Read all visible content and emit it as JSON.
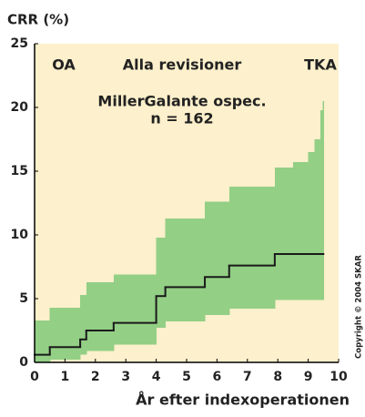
{
  "chart_data": {
    "type": "step",
    "title": "CRR (%)",
    "x_label": "År efter indexoperationen",
    "annotations": [
      "OA",
      "Alla revisioner",
      "TKA",
      "MillerGalante ospec.",
      "n = 162"
    ],
    "copyright": "Copyright © 2004 SKAR",
    "x": [
      0,
      0.5,
      1.5,
      1.7,
      2.6,
      4.0,
      4.3,
      5.6,
      6.4,
      7.9,
      8.5,
      9.0,
      9.2,
      9.4,
      9.5
    ],
    "values": [
      0.6,
      1.2,
      1.8,
      2.5,
      3.1,
      5.2,
      5.9,
      6.7,
      7.6,
      8.5,
      8.5,
      8.5,
      8.5,
      8.5,
      8.5
    ],
    "upper": [
      3.3,
      4.3,
      5.3,
      6.3,
      6.9,
      9.8,
      11.3,
      12.6,
      13.8,
      15.3,
      15.7,
      16.5,
      17.5,
      19.8,
      20.5
    ],
    "lower": [
      0,
      0.2,
      0.6,
      0.9,
      1.4,
      2.7,
      3.2,
      3.7,
      4.2,
      4.9,
      4.9,
      4.9,
      4.9,
      4.9,
      4.9
    ],
    "line_color": "#1a1a1a",
    "band_color": "#93cf85",
    "background": "#fdf0cc",
    "xlim": [
      0,
      10
    ],
    "xticks": [
      0,
      1,
      2,
      3,
      4,
      5,
      6,
      7,
      8,
      9,
      10
    ],
    "ylim": [
      0,
      25
    ],
    "yticks": [
      0,
      5,
      10,
      15,
      20,
      25
    ]
  }
}
